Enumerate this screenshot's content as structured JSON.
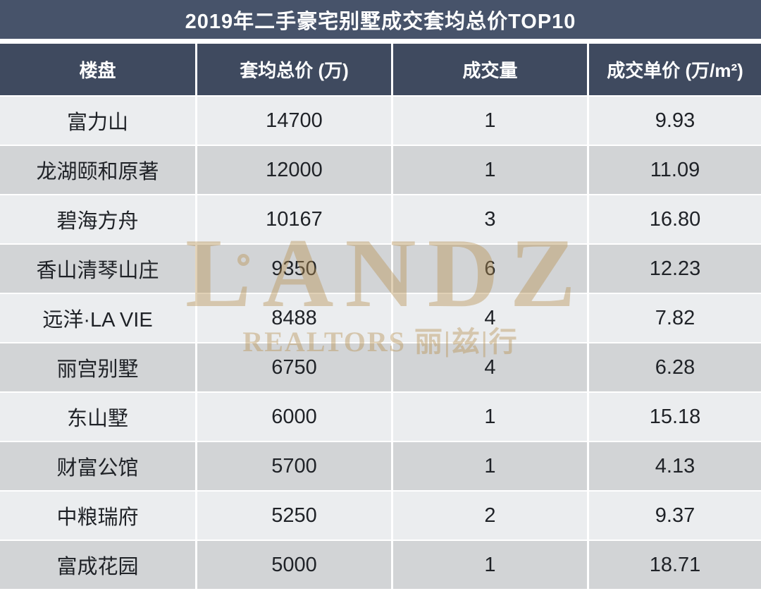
{
  "title": "2019年二手豪宅别墅成交套均总价TOP10",
  "table": {
    "columns": [
      "楼盘",
      "套均总价 (万)",
      "成交量",
      "成交单价 (万/m²)"
    ],
    "rows": [
      [
        "富力山",
        "14700",
        "1",
        "9.93"
      ],
      [
        "龙湖颐和原著",
        "12000",
        "1",
        "11.09"
      ],
      [
        "碧海方舟",
        "10167",
        "3",
        "16.80"
      ],
      [
        "香山清琴山庄",
        "9350",
        "6",
        "12.23"
      ],
      [
        "远洋·LA VIE",
        "8488",
        "4",
        "7.82"
      ],
      [
        "丽宫别墅",
        "6750",
        "4",
        "6.28"
      ],
      [
        "东山墅",
        "6000",
        "1",
        "15.18"
      ],
      [
        "财富公馆",
        "5700",
        "1",
        "4.13"
      ],
      [
        "中粮瑞府",
        "5250",
        "2",
        "9.37"
      ],
      [
        "富成花园",
        "5000",
        "1",
        "18.71"
      ]
    ]
  },
  "watermark": {
    "brand": "LANDZ",
    "subtitle": "REALTORS 丽|兹|行"
  },
  "colors": {
    "title_bar": "#47536A",
    "header_bg": "#3F4A5F",
    "row_light": "#EBEDEF",
    "row_dark": "#D2D4D6",
    "body_text": "#1F2227",
    "watermark_gold": "#B89250"
  },
  "chart_data": {
    "type": "table",
    "title": "2019年二手豪宅别墅成交套均总价TOP10",
    "columns": [
      "楼盘",
      "套均总价 (万)",
      "成交量",
      "成交单价 (万/m²)"
    ],
    "rows": [
      {
        "楼盘": "富力山",
        "套均总价_万": 14700,
        "成交量": 1,
        "成交单价_万每平米": 9.93
      },
      {
        "楼盘": "龙湖颐和原著",
        "套均总价_万": 12000,
        "成交量": 1,
        "成交单价_万每平米": 11.09
      },
      {
        "楼盘": "碧海方舟",
        "套均总价_万": 10167,
        "成交量": 3,
        "成交单价_万每平米": 16.8
      },
      {
        "楼盘": "香山清琴山庄",
        "套均总价_万": 9350,
        "成交量": 6,
        "成交单价_万每平米": 12.23
      },
      {
        "楼盘": "远洋·LA VIE",
        "套均总价_万": 8488,
        "成交量": 4,
        "成交单价_万每平米": 7.82
      },
      {
        "楼盘": "丽宫别墅",
        "套均总价_万": 6750,
        "成交量": 4,
        "成交单价_万每平米": 6.28
      },
      {
        "楼盘": "东山墅",
        "套均总价_万": 6000,
        "成交量": 1,
        "成交单价_万每平米": 15.18
      },
      {
        "楼盘": "财富公馆",
        "套均总价_万": 5700,
        "成交量": 1,
        "成交单价_万每平米": 4.13
      },
      {
        "楼盘": "中粮瑞府",
        "套均总价_万": 5250,
        "成交量": 2,
        "成交单价_万每平米": 9.37
      },
      {
        "楼盘": "富成花园",
        "套均总价_万": 5000,
        "成交量": 1,
        "成交单价_万每平米": 18.71
      }
    ]
  }
}
